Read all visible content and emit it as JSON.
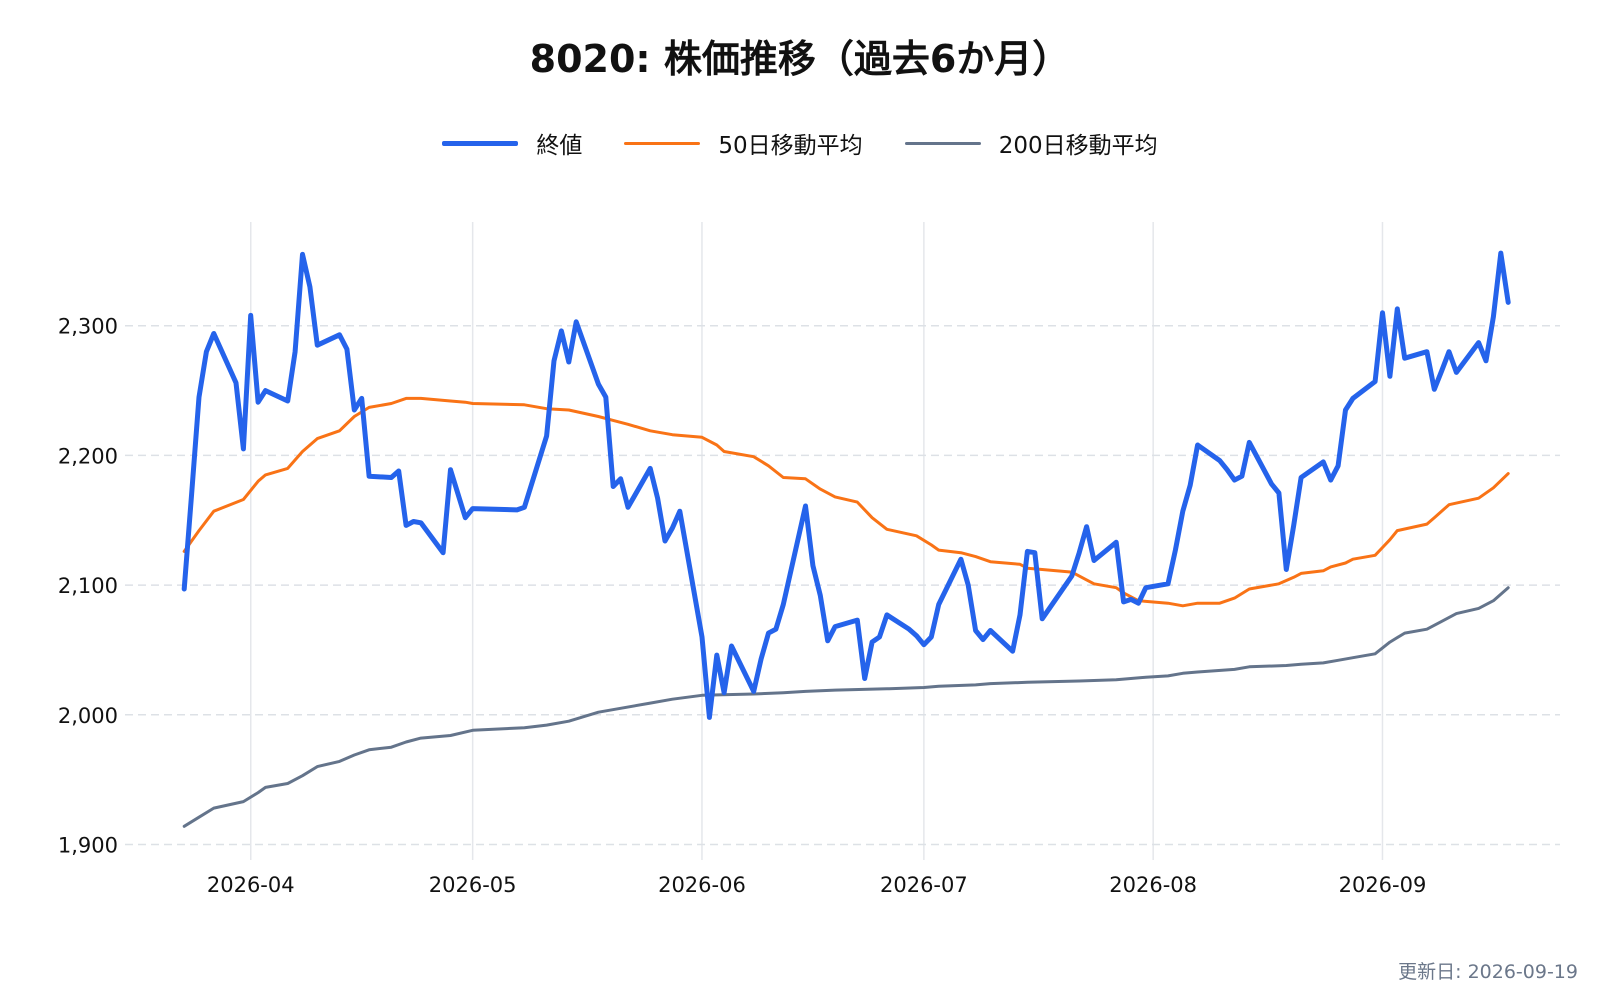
{
  "title": "8020: 株価推移（過去6か月）",
  "footer": "更新日: 2026-09-19",
  "chart_data": {
    "type": "line",
    "title": "8020: 株価推移（過去6か月）",
    "xlabel": "",
    "ylabel": "",
    "x_ticks": [
      "2026-04",
      "2026-05",
      "2026-06",
      "2026-07",
      "2026-08",
      "2026-09"
    ],
    "y_ticks": [
      1900,
      2000,
      2100,
      2200,
      2300
    ],
    "y_tick_labels": [
      "1,900",
      "2,000",
      "2,100",
      "2,200",
      "2,300"
    ],
    "ylim": [
      1888,
      2380
    ],
    "xlim": [
      "2026-03-15",
      "2026-09-25"
    ],
    "grid": true,
    "legend_position": "top-center",
    "series": [
      {
        "name": "終値",
        "color": "#2563eb",
        "points": [
          [
            "2026-03-23",
            2097
          ],
          [
            "2026-03-24",
            2170
          ],
          [
            "2026-03-25",
            2245
          ],
          [
            "2026-03-26",
            2280
          ],
          [
            "2026-03-27",
            2294
          ],
          [
            "2026-03-30",
            2256
          ],
          [
            "2026-03-31",
            2205
          ],
          [
            "2026-04-01",
            2308
          ],
          [
            "2026-04-02",
            2241
          ],
          [
            "2026-04-03",
            2250
          ],
          [
            "2026-04-06",
            2242
          ],
          [
            "2026-04-07",
            2280
          ],
          [
            "2026-04-08",
            2355
          ],
          [
            "2026-04-09",
            2330
          ],
          [
            "2026-04-10",
            2285
          ],
          [
            "2026-04-13",
            2293
          ],
          [
            "2026-04-14",
            2282
          ],
          [
            "2026-04-15",
            2235
          ],
          [
            "2026-04-16",
            2244
          ],
          [
            "2026-04-17",
            2184
          ],
          [
            "2026-04-20",
            2183
          ],
          [
            "2026-04-21",
            2188
          ],
          [
            "2026-04-22",
            2146
          ],
          [
            "2026-04-23",
            2149
          ],
          [
            "2026-04-24",
            2148
          ],
          [
            "2026-04-27",
            2125
          ],
          [
            "2026-04-28",
            2189
          ],
          [
            "2026-04-30",
            2152
          ],
          [
            "2026-05-01",
            2159
          ],
          [
            "2026-05-07",
            2158
          ],
          [
            "2026-05-08",
            2160
          ],
          [
            "2026-05-11",
            2215
          ],
          [
            "2026-05-12",
            2273
          ],
          [
            "2026-05-13",
            2296
          ],
          [
            "2026-05-14",
            2272
          ],
          [
            "2026-05-15",
            2303
          ],
          [
            "2026-05-18",
            2255
          ],
          [
            "2026-05-19",
            2245
          ],
          [
            "2026-05-20",
            2176
          ],
          [
            "2026-05-21",
            2182
          ],
          [
            "2026-05-22",
            2160
          ],
          [
            "2026-05-25",
            2190
          ],
          [
            "2026-05-26",
            2167
          ],
          [
            "2026-05-27",
            2134
          ],
          [
            "2026-05-28",
            2144
          ],
          [
            "2026-05-29",
            2157
          ],
          [
            "2026-06-01",
            2060
          ],
          [
            "2026-06-02",
            1998
          ],
          [
            "2026-06-03",
            2046
          ],
          [
            "2026-06-04",
            2017
          ],
          [
            "2026-06-05",
            2053
          ],
          [
            "2026-06-08",
            2018
          ],
          [
            "2026-06-09",
            2043
          ],
          [
            "2026-06-10",
            2063
          ],
          [
            "2026-06-11",
            2066
          ],
          [
            "2026-06-12",
            2085
          ],
          [
            "2026-06-15",
            2161
          ],
          [
            "2026-06-16",
            2115
          ],
          [
            "2026-06-17",
            2092
          ],
          [
            "2026-06-18",
            2057
          ],
          [
            "2026-06-19",
            2068
          ],
          [
            "2026-06-22",
            2073
          ],
          [
            "2026-06-23",
            2028
          ],
          [
            "2026-06-24",
            2056
          ],
          [
            "2026-06-25",
            2060
          ],
          [
            "2026-06-26",
            2077
          ],
          [
            "2026-06-29",
            2066
          ],
          [
            "2026-06-30",
            2061
          ],
          [
            "2026-07-01",
            2054
          ],
          [
            "2026-07-02",
            2060
          ],
          [
            "2026-07-03",
            2085
          ],
          [
            "2026-07-06",
            2120
          ],
          [
            "2026-07-07",
            2100
          ],
          [
            "2026-07-08",
            2065
          ],
          [
            "2026-07-09",
            2058
          ],
          [
            "2026-07-10",
            2065
          ],
          [
            "2026-07-13",
            2049
          ],
          [
            "2026-07-14",
            2077
          ],
          [
            "2026-07-15",
            2126
          ],
          [
            "2026-07-16",
            2125
          ],
          [
            "2026-07-17",
            2074
          ],
          [
            "2026-07-21",
            2107
          ],
          [
            "2026-07-22",
            2125
          ],
          [
            "2026-07-23",
            2145
          ],
          [
            "2026-07-24",
            2119
          ],
          [
            "2026-07-27",
            2133
          ],
          [
            "2026-07-28",
            2087
          ],
          [
            "2026-07-29",
            2089
          ],
          [
            "2026-07-30",
            2086
          ],
          [
            "2026-07-31",
            2098
          ],
          [
            "2026-08-03",
            2101
          ],
          [
            "2026-08-04",
            2127
          ],
          [
            "2026-08-05",
            2157
          ],
          [
            "2026-08-06",
            2177
          ],
          [
            "2026-08-07",
            2208
          ],
          [
            "2026-08-10",
            2196
          ],
          [
            "2026-08-11",
            2189
          ],
          [
            "2026-08-12",
            2181
          ],
          [
            "2026-08-13",
            2184
          ],
          [
            "2026-08-14",
            2210
          ],
          [
            "2026-08-17",
            2178
          ],
          [
            "2026-08-18",
            2171
          ],
          [
            "2026-08-19",
            2112
          ],
          [
            "2026-08-20",
            2146
          ],
          [
            "2026-08-21",
            2183
          ],
          [
            "2026-08-24",
            2195
          ],
          [
            "2026-08-25",
            2181
          ],
          [
            "2026-08-26",
            2192
          ],
          [
            "2026-08-27",
            2235
          ],
          [
            "2026-08-28",
            2244
          ],
          [
            "2026-08-31",
            2257
          ],
          [
            "2026-09-01",
            2310
          ],
          [
            "2026-09-02",
            2261
          ],
          [
            "2026-09-03",
            2313
          ],
          [
            "2026-09-04",
            2275
          ],
          [
            "2026-09-07",
            2280
          ],
          [
            "2026-09-08",
            2251
          ],
          [
            "2026-09-09",
            2265
          ],
          [
            "2026-09-10",
            2280
          ],
          [
            "2026-09-11",
            2264
          ],
          [
            "2026-09-14",
            2287
          ],
          [
            "2026-09-15",
            2273
          ],
          [
            "2026-09-16",
            2307
          ],
          [
            "2026-09-17",
            2356
          ],
          [
            "2026-09-18",
            2318
          ]
        ]
      },
      {
        "name": "50日移動平均",
        "color": "#f97316",
        "points": [
          [
            "2026-03-23",
            2126
          ],
          [
            "2026-03-25",
            2142
          ],
          [
            "2026-03-27",
            2157
          ],
          [
            "2026-03-31",
            2166
          ],
          [
            "2026-04-02",
            2180
          ],
          [
            "2026-04-03",
            2185
          ],
          [
            "2026-04-06",
            2190
          ],
          [
            "2026-04-08",
            2203
          ],
          [
            "2026-04-10",
            2213
          ],
          [
            "2026-04-13",
            2219
          ],
          [
            "2026-04-15",
            2230
          ],
          [
            "2026-04-17",
            2237
          ],
          [
            "2026-04-20",
            2240
          ],
          [
            "2026-04-22",
            2244
          ],
          [
            "2026-04-24",
            2244
          ],
          [
            "2026-04-28",
            2242
          ],
          [
            "2026-04-30",
            2241
          ],
          [
            "2026-05-01",
            2240
          ],
          [
            "2026-05-08",
            2239
          ],
          [
            "2026-05-11",
            2236
          ],
          [
            "2026-05-14",
            2235
          ],
          [
            "2026-05-18",
            2230
          ],
          [
            "2026-05-20",
            2227
          ],
          [
            "2026-05-22",
            2224
          ],
          [
            "2026-05-25",
            2219
          ],
          [
            "2026-05-28",
            2216
          ],
          [
            "2026-06-01",
            2214
          ],
          [
            "2026-06-03",
            2208
          ],
          [
            "2026-06-04",
            2203
          ],
          [
            "2026-06-08",
            2199
          ],
          [
            "2026-06-10",
            2192
          ],
          [
            "2026-06-12",
            2183
          ],
          [
            "2026-06-15",
            2182
          ],
          [
            "2026-06-17",
            2174
          ],
          [
            "2026-06-19",
            2168
          ],
          [
            "2026-06-22",
            2164
          ],
          [
            "2026-06-24",
            2152
          ],
          [
            "2026-06-26",
            2143
          ],
          [
            "2026-06-30",
            2138
          ],
          [
            "2026-07-02",
            2131
          ],
          [
            "2026-07-03",
            2127
          ],
          [
            "2026-07-06",
            2125
          ],
          [
            "2026-07-08",
            2122
          ],
          [
            "2026-07-10",
            2118
          ],
          [
            "2026-07-14",
            2116
          ],
          [
            "2026-07-15",
            2113
          ],
          [
            "2026-07-17",
            2112
          ],
          [
            "2026-07-21",
            2110
          ],
          [
            "2026-07-23",
            2104
          ],
          [
            "2026-07-24",
            2101
          ],
          [
            "2026-07-27",
            2098
          ],
          [
            "2026-07-28",
            2094
          ],
          [
            "2026-07-30",
            2088
          ],
          [
            "2026-08-03",
            2086
          ],
          [
            "2026-08-05",
            2084
          ],
          [
            "2026-08-07",
            2086
          ],
          [
            "2026-08-10",
            2086
          ],
          [
            "2026-08-12",
            2090
          ],
          [
            "2026-08-14",
            2097
          ],
          [
            "2026-08-18",
            2101
          ],
          [
            "2026-08-20",
            2106
          ],
          [
            "2026-08-21",
            2109
          ],
          [
            "2026-08-24",
            2111
          ],
          [
            "2026-08-25",
            2114
          ],
          [
            "2026-08-27",
            2117
          ],
          [
            "2026-08-28",
            2120
          ],
          [
            "2026-08-31",
            2123
          ],
          [
            "2026-09-01",
            2129
          ],
          [
            "2026-09-02",
            2135
          ],
          [
            "2026-09-03",
            2142
          ],
          [
            "2026-09-07",
            2147
          ],
          [
            "2026-09-08",
            2152
          ],
          [
            "2026-09-10",
            2162
          ],
          [
            "2026-09-14",
            2167
          ],
          [
            "2026-09-16",
            2175
          ],
          [
            "2026-09-18",
            2186
          ]
        ]
      },
      {
        "name": "200日移動平均",
        "color": "#64748b",
        "points": [
          [
            "2026-03-23",
            1914
          ],
          [
            "2026-03-25",
            1921
          ],
          [
            "2026-03-27",
            1928
          ],
          [
            "2026-03-31",
            1933
          ],
          [
            "2026-04-02",
            1940
          ],
          [
            "2026-04-03",
            1944
          ],
          [
            "2026-04-06",
            1947
          ],
          [
            "2026-04-08",
            1953
          ],
          [
            "2026-04-10",
            1960
          ],
          [
            "2026-04-13",
            1964
          ],
          [
            "2026-04-15",
            1969
          ],
          [
            "2026-04-17",
            1973
          ],
          [
            "2026-04-20",
            1975
          ],
          [
            "2026-04-22",
            1979
          ],
          [
            "2026-04-24",
            1982
          ],
          [
            "2026-04-28",
            1984
          ],
          [
            "2026-05-01",
            1988
          ],
          [
            "2026-05-08",
            1990
          ],
          [
            "2026-05-11",
            1992
          ],
          [
            "2026-05-14",
            1995
          ],
          [
            "2026-05-18",
            2002
          ],
          [
            "2026-05-21",
            2005
          ],
          [
            "2026-05-25",
            2009
          ],
          [
            "2026-05-28",
            2012
          ],
          [
            "2026-06-01",
            2015
          ],
          [
            "2026-06-08",
            2016
          ],
          [
            "2026-06-12",
            2017
          ],
          [
            "2026-06-15",
            2018
          ],
          [
            "2026-06-19",
            2019
          ],
          [
            "2026-06-26",
            2020
          ],
          [
            "2026-07-01",
            2021
          ],
          [
            "2026-07-03",
            2022
          ],
          [
            "2026-07-08",
            2023
          ],
          [
            "2026-07-10",
            2024
          ],
          [
            "2026-07-15",
            2025
          ],
          [
            "2026-07-22",
            2026
          ],
          [
            "2026-07-27",
            2027
          ],
          [
            "2026-07-31",
            2029
          ],
          [
            "2026-08-03",
            2030
          ],
          [
            "2026-08-05",
            2032
          ],
          [
            "2026-08-07",
            2033
          ],
          [
            "2026-08-12",
            2035
          ],
          [
            "2026-08-14",
            2037
          ],
          [
            "2026-08-19",
            2038
          ],
          [
            "2026-08-21",
            2039
          ],
          [
            "2026-08-24",
            2040
          ],
          [
            "2026-08-26",
            2042
          ],
          [
            "2026-08-28",
            2044
          ],
          [
            "2026-08-31",
            2047
          ],
          [
            "2026-09-02",
            2056
          ],
          [
            "2026-09-04",
            2063
          ],
          [
            "2026-09-07",
            2066
          ],
          [
            "2026-09-09",
            2072
          ],
          [
            "2026-09-11",
            2078
          ],
          [
            "2026-09-14",
            2082
          ],
          [
            "2026-09-16",
            2088
          ],
          [
            "2026-09-18",
            2098
          ]
        ]
      }
    ]
  }
}
